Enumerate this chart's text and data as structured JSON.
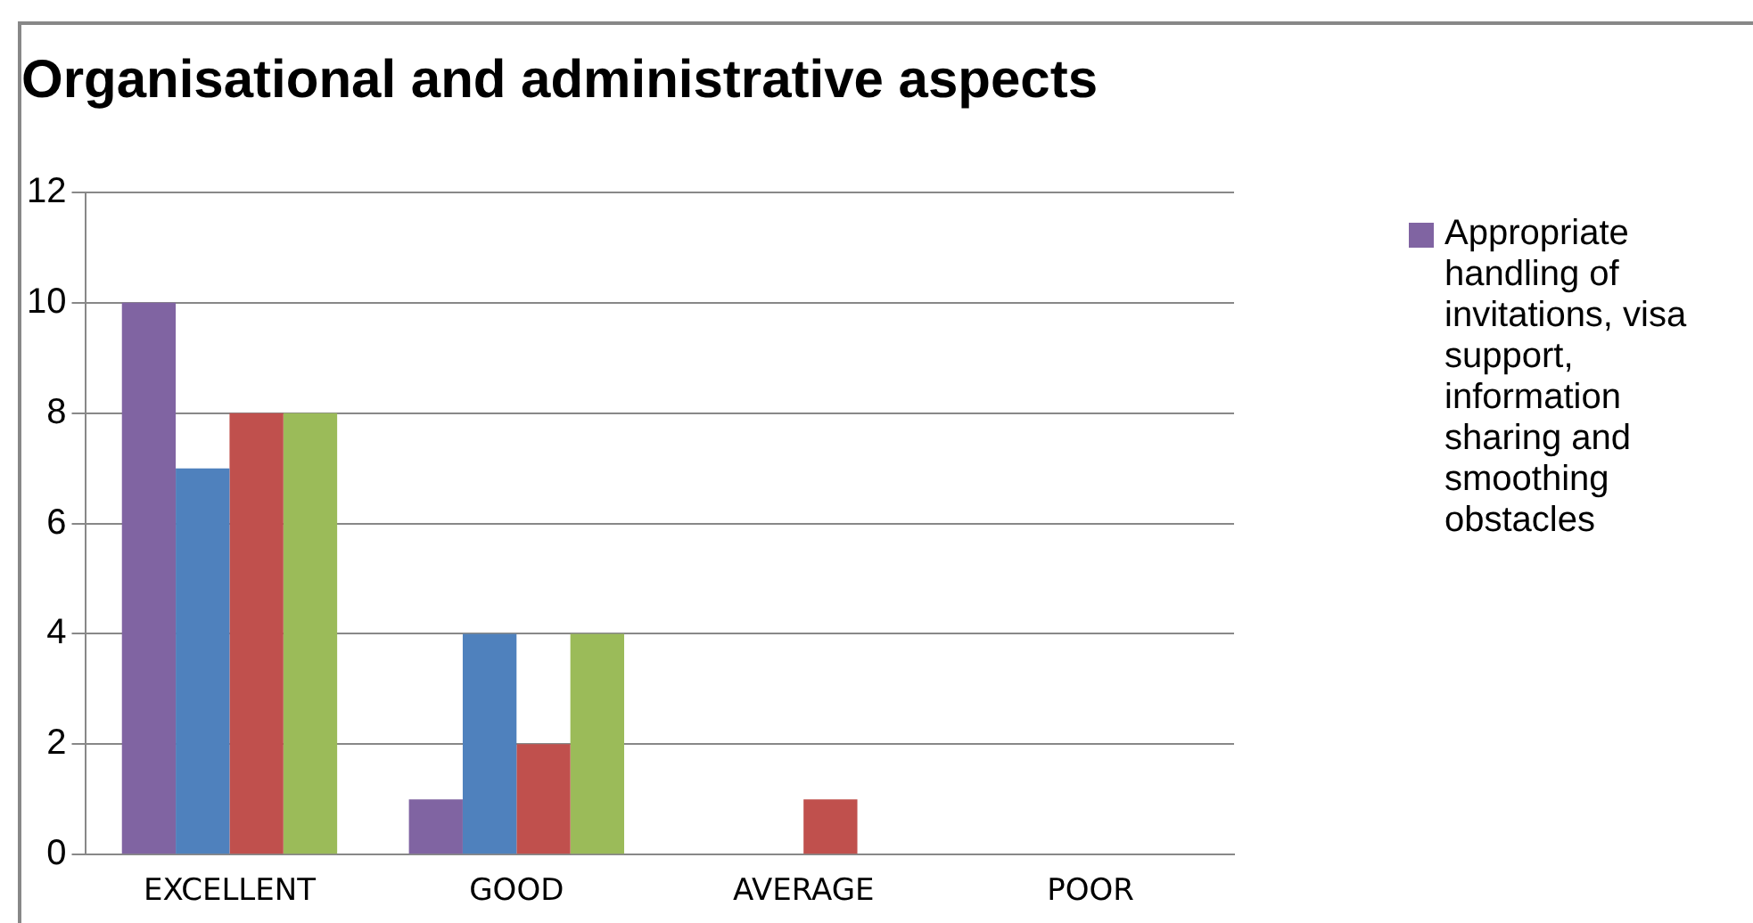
{
  "chart_data": {
    "type": "bar",
    "title": "Organisational and administrative aspects",
    "categories": [
      "EXCELLENT",
      "GOOD",
      "AVERAGE",
      "POOR"
    ],
    "series": [
      {
        "name": "Appropriate handling of invitations, visa support, information sharing and smoothing obstacles",
        "color": "#8064a2",
        "values": [
          10,
          1,
          0,
          0
        ]
      },
      {
        "color": "#4f81bd",
        "values": [
          7,
          4,
          0,
          0
        ]
      },
      {
        "color": "#c0504d",
        "values": [
          8,
          2,
          1,
          0
        ]
      },
      {
        "color": "#9bbb59",
        "values": [
          8,
          4,
          0,
          0
        ]
      }
    ],
    "ylim": [
      0,
      12
    ],
    "yticks": [
      0,
      2,
      4,
      6,
      8,
      10,
      12
    ],
    "grid": "y",
    "legend": "right"
  }
}
